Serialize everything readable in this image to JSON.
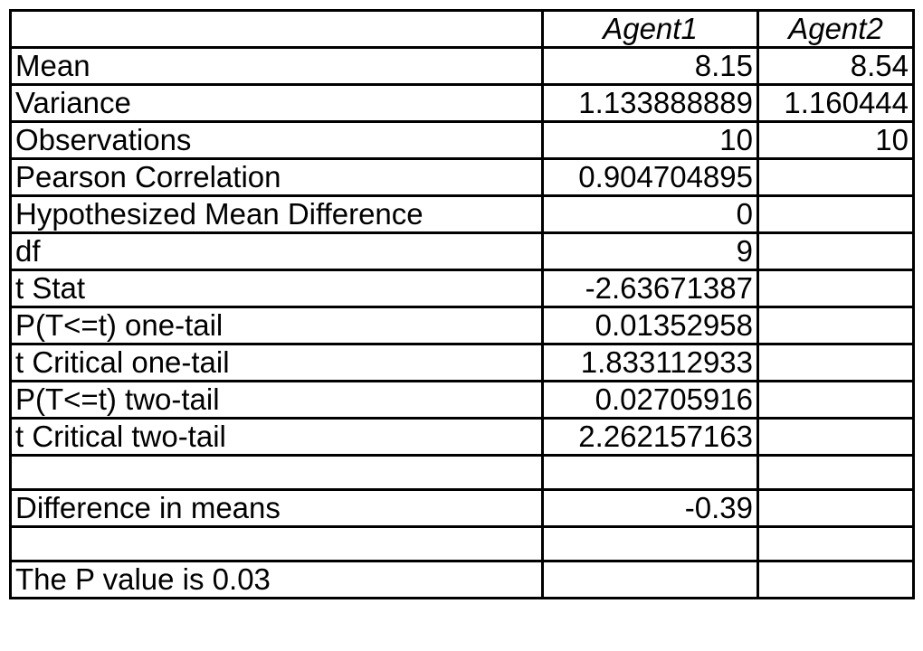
{
  "headers": [
    "",
    "Agent1",
    "Agent2"
  ],
  "rows": [
    {
      "label": "Mean",
      "agent1": "8.15",
      "agent2": "8.54"
    },
    {
      "label": "Variance",
      "agent1": "1.133888889",
      "agent2": "1.160444"
    },
    {
      "label": "Observations",
      "agent1": "10",
      "agent2": "10"
    },
    {
      "label": "Pearson Correlation",
      "agent1": "0.904704895",
      "agent2": ""
    },
    {
      "label": "Hypothesized Mean Difference",
      "agent1": "0",
      "agent2": ""
    },
    {
      "label": "df",
      "agent1": "9",
      "agent2": ""
    },
    {
      "label": "t Stat",
      "agent1": "-2.63671387",
      "agent2": ""
    },
    {
      "label": "P(T<=t) one-tail",
      "agent1": "0.01352958",
      "agent2": ""
    },
    {
      "label": "t Critical one-tail",
      "agent1": "1.833112933",
      "agent2": ""
    },
    {
      "label": "P(T<=t) two-tail",
      "agent1": "0.02705916",
      "agent2": ""
    },
    {
      "label": "t Critical two-tail",
      "agent1": "2.262157163",
      "agent2": ""
    },
    {
      "label": "",
      "agent1": "",
      "agent2": ""
    },
    {
      "label": "Difference in means",
      "agent1": "-0.39",
      "agent2": ""
    },
    {
      "label": "",
      "agent1": "",
      "agent2": ""
    },
    {
      "label": "The P value is 0.03",
      "agent1": "",
      "agent2": ""
    }
  ]
}
